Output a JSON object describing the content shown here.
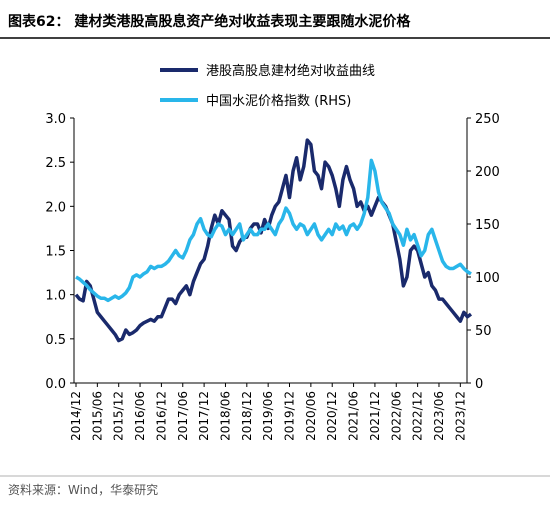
{
  "chart_data": {
    "type": "line",
    "title": "图表62：  建材类港股高股息资产绝对收益表现主要跟随水泥价格",
    "source": "资料来源：Wind，华泰研究",
    "categories": [
      "2014/12",
      null,
      null,
      null,
      null,
      null,
      "2015/06",
      null,
      null,
      null,
      null,
      null,
      "2015/12",
      null,
      null,
      null,
      null,
      null,
      "2016/06",
      null,
      null,
      null,
      null,
      null,
      "2016/12",
      null,
      null,
      null,
      null,
      null,
      "2017/06",
      null,
      null,
      null,
      null,
      null,
      "2017/12",
      null,
      null,
      null,
      null,
      null,
      "2018/06",
      null,
      null,
      null,
      null,
      null,
      "2018/12",
      null,
      null,
      null,
      null,
      null,
      "2019/06",
      null,
      null,
      null,
      null,
      null,
      "2019/12",
      null,
      null,
      null,
      null,
      null,
      "2020/06",
      null,
      null,
      null,
      null,
      null,
      "2020/12",
      null,
      null,
      null,
      null,
      null,
      "2021/06",
      null,
      null,
      null,
      null,
      null,
      "2021/12",
      null,
      null,
      null,
      null,
      null,
      "2022/06",
      null,
      null,
      null,
      null,
      null,
      "2022/12",
      null,
      null,
      null,
      null,
      null,
      "2023/06",
      null,
      null,
      null,
      null,
      null,
      "2023/12",
      null,
      null,
      null
    ],
    "series": [
      {
        "name": "港股高股息建材绝对收益曲线",
        "color": "#1a2a6c",
        "values": [
          1.0,
          0.95,
          0.93,
          1.15,
          1.1,
          0.95,
          0.8,
          0.75,
          0.7,
          0.65,
          0.6,
          0.55,
          0.48,
          0.5,
          0.6,
          0.55,
          0.57,
          0.6,
          0.65,
          0.68,
          0.7,
          0.72,
          0.7,
          0.75,
          0.75,
          0.85,
          0.95,
          0.95,
          0.9,
          1.0,
          1.05,
          1.1,
          1.0,
          1.15,
          1.25,
          1.35,
          1.4,
          1.55,
          1.75,
          1.9,
          1.8,
          1.95,
          1.9,
          1.85,
          1.55,
          1.5,
          1.6,
          1.65,
          1.65,
          1.75,
          1.8,
          1.8,
          1.7,
          1.85,
          1.75,
          1.9,
          2.0,
          2.05,
          2.2,
          2.35,
          2.1,
          2.4,
          2.55,
          2.3,
          2.45,
          2.75,
          2.7,
          2.4,
          2.35,
          2.2,
          2.5,
          2.45,
          2.35,
          2.2,
          2.0,
          2.3,
          2.45,
          2.3,
          2.2,
          2.0,
          2.05,
          1.95,
          2.0,
          1.9,
          2.0,
          2.1,
          2.05,
          2.0,
          1.9,
          1.8,
          1.6,
          1.4,
          1.1,
          1.2,
          1.5,
          1.55,
          1.5,
          1.35,
          1.2,
          1.25,
          1.1,
          1.05,
          0.95,
          0.95,
          0.9,
          0.85,
          0.8,
          0.75,
          0.7,
          0.8,
          0.75,
          0.78
        ]
      },
      {
        "name": "中国水泥价格指数 (RHS)",
        "color": "#29b6ea",
        "axis": "y2",
        "values": [
          100,
          98,
          95,
          92,
          88,
          85,
          82,
          80,
          80,
          78,
          80,
          82,
          80,
          82,
          85,
          90,
          100,
          102,
          100,
          103,
          105,
          110,
          108,
          110,
          110,
          112,
          115,
          120,
          125,
          120,
          118,
          125,
          135,
          140,
          150,
          155,
          145,
          140,
          138,
          145,
          150,
          148,
          140,
          145,
          140,
          145,
          150,
          135,
          140,
          145,
          140,
          140,
          145,
          145,
          150,
          145,
          140,
          150,
          155,
          165,
          160,
          150,
          145,
          150,
          148,
          140,
          145,
          150,
          140,
          135,
          140,
          145,
          140,
          150,
          145,
          148,
          140,
          148,
          150,
          145,
          150,
          160,
          175,
          210,
          200,
          180,
          170,
          165,
          160,
          150,
          145,
          140,
          130,
          145,
          135,
          140,
          130,
          120,
          125,
          140,
          145,
          135,
          125,
          115,
          110,
          108,
          108,
          110,
          112,
          108,
          105,
          103
        ]
      }
    ],
    "ylim": [
      0,
      3.0
    ],
    "yticks": [
      {
        "value": 0,
        "label": "0.0"
      },
      {
        "value": 0.5,
        "label": "0.5"
      },
      {
        "value": 1,
        "label": "1.0"
      },
      {
        "value": 1.5,
        "label": "1.5"
      },
      {
        "value": 2,
        "label": "2.0"
      },
      {
        "value": 2.5,
        "label": "2.5"
      },
      {
        "value": 3,
        "label": "3.0"
      }
    ],
    "y2lim": [
      0,
      250
    ],
    "y2ticks": [
      0,
      50,
      100,
      150,
      200,
      250
    ]
  }
}
